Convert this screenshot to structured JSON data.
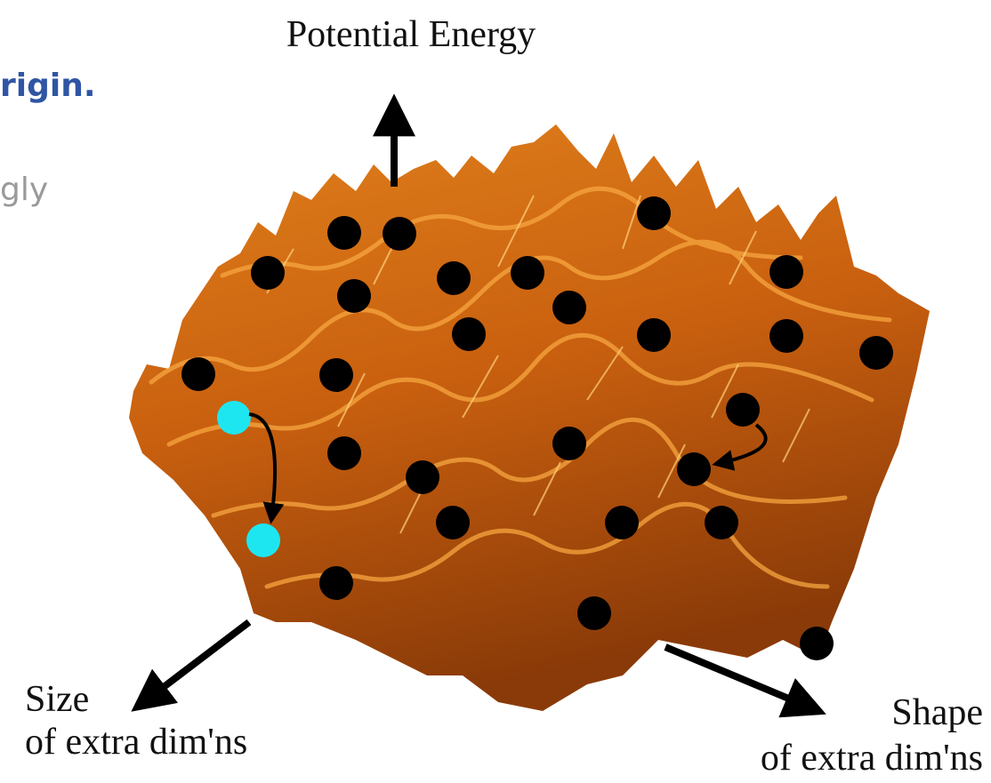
{
  "header": {
    "title_fragment": "rigin.",
    "text_fragment": "gly"
  },
  "axes": {
    "vertical": "Potential Energy",
    "left": [
      "Size",
      "of extra dim'ns"
    ],
    "right": [
      "Shape",
      "of extra dim'ns"
    ]
  }
}
